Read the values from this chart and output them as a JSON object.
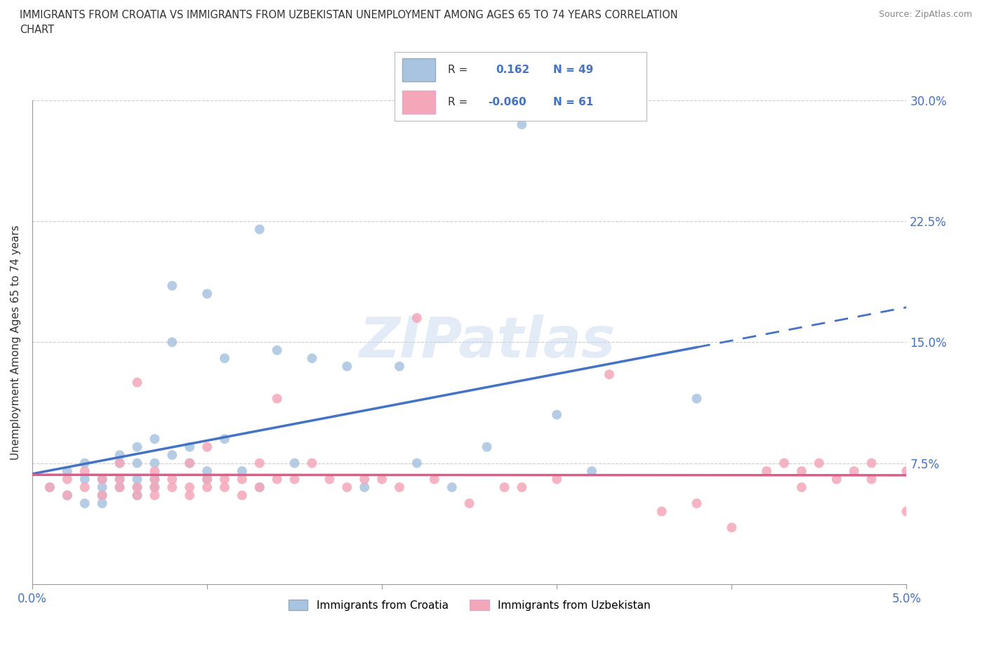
{
  "title": "IMMIGRANTS FROM CROATIA VS IMMIGRANTS FROM UZBEKISTAN UNEMPLOYMENT AMONG AGES 65 TO 74 YEARS CORRELATION\nCHART",
  "source": "Source: ZipAtlas.com",
  "ylabel": "Unemployment Among Ages 65 to 74 years",
  "xlim": [
    0.0,
    0.05
  ],
  "ylim": [
    0.0,
    0.3
  ],
  "xticks": [
    0.0,
    0.01,
    0.02,
    0.03,
    0.04,
    0.05
  ],
  "xtick_labels": [
    "0.0%",
    "",
    "",
    "",
    "",
    "5.0%"
  ],
  "yticks": [
    0.0,
    0.075,
    0.15,
    0.225,
    0.3
  ],
  "ytick_labels": [
    "",
    "7.5%",
    "15.0%",
    "22.5%",
    "30.0%"
  ],
  "croatia_R": 0.162,
  "croatia_N": 49,
  "uzbekistan_R": -0.06,
  "uzbekistan_N": 61,
  "croatia_color": "#a8c4e0",
  "uzbekistan_color": "#f4a7b9",
  "croatia_line_color": "#4472c4",
  "uzbekistan_line_color": "#e05a8a",
  "watermark": "ZIPatlas",
  "croatia_scatter_x": [
    0.001,
    0.002,
    0.002,
    0.003,
    0.003,
    0.003,
    0.004,
    0.004,
    0.004,
    0.004,
    0.005,
    0.005,
    0.005,
    0.005,
    0.006,
    0.006,
    0.006,
    0.006,
    0.006,
    0.007,
    0.007,
    0.007,
    0.007,
    0.008,
    0.008,
    0.008,
    0.009,
    0.009,
    0.01,
    0.01,
    0.01,
    0.011,
    0.011,
    0.012,
    0.013,
    0.013,
    0.014,
    0.015,
    0.016,
    0.018,
    0.019,
    0.021,
    0.022,
    0.024,
    0.026,
    0.028,
    0.03,
    0.032,
    0.038
  ],
  "croatia_scatter_y": [
    0.06,
    0.055,
    0.07,
    0.05,
    0.065,
    0.075,
    0.055,
    0.06,
    0.065,
    0.05,
    0.06,
    0.065,
    0.075,
    0.08,
    0.055,
    0.06,
    0.065,
    0.075,
    0.085,
    0.06,
    0.065,
    0.075,
    0.09,
    0.08,
    0.15,
    0.185,
    0.075,
    0.085,
    0.065,
    0.07,
    0.18,
    0.09,
    0.14,
    0.07,
    0.06,
    0.22,
    0.145,
    0.075,
    0.14,
    0.135,
    0.06,
    0.135,
    0.075,
    0.06,
    0.085,
    0.285,
    0.105,
    0.07,
    0.115
  ],
  "uzbekistan_scatter_x": [
    0.001,
    0.002,
    0.002,
    0.003,
    0.003,
    0.004,
    0.004,
    0.005,
    0.005,
    0.005,
    0.006,
    0.006,
    0.006,
    0.007,
    0.007,
    0.007,
    0.007,
    0.008,
    0.008,
    0.009,
    0.009,
    0.009,
    0.01,
    0.01,
    0.01,
    0.011,
    0.011,
    0.012,
    0.012,
    0.013,
    0.013,
    0.014,
    0.014,
    0.015,
    0.016,
    0.017,
    0.018,
    0.019,
    0.02,
    0.021,
    0.022,
    0.023,
    0.025,
    0.027,
    0.028,
    0.03,
    0.033,
    0.036,
    0.038,
    0.04,
    0.042,
    0.043,
    0.044,
    0.044,
    0.045,
    0.046,
    0.047,
    0.048,
    0.048,
    0.05,
    0.05
  ],
  "uzbekistan_scatter_y": [
    0.06,
    0.055,
    0.065,
    0.06,
    0.07,
    0.055,
    0.065,
    0.06,
    0.065,
    0.075,
    0.055,
    0.06,
    0.125,
    0.055,
    0.06,
    0.065,
    0.07,
    0.06,
    0.065,
    0.055,
    0.06,
    0.075,
    0.06,
    0.065,
    0.085,
    0.06,
    0.065,
    0.055,
    0.065,
    0.06,
    0.075,
    0.065,
    0.115,
    0.065,
    0.075,
    0.065,
    0.06,
    0.065,
    0.065,
    0.06,
    0.165,
    0.065,
    0.05,
    0.06,
    0.06,
    0.065,
    0.13,
    0.045,
    0.05,
    0.035,
    0.07,
    0.075,
    0.07,
    0.06,
    0.075,
    0.065,
    0.07,
    0.075,
    0.065,
    0.07,
    0.045
  ]
}
